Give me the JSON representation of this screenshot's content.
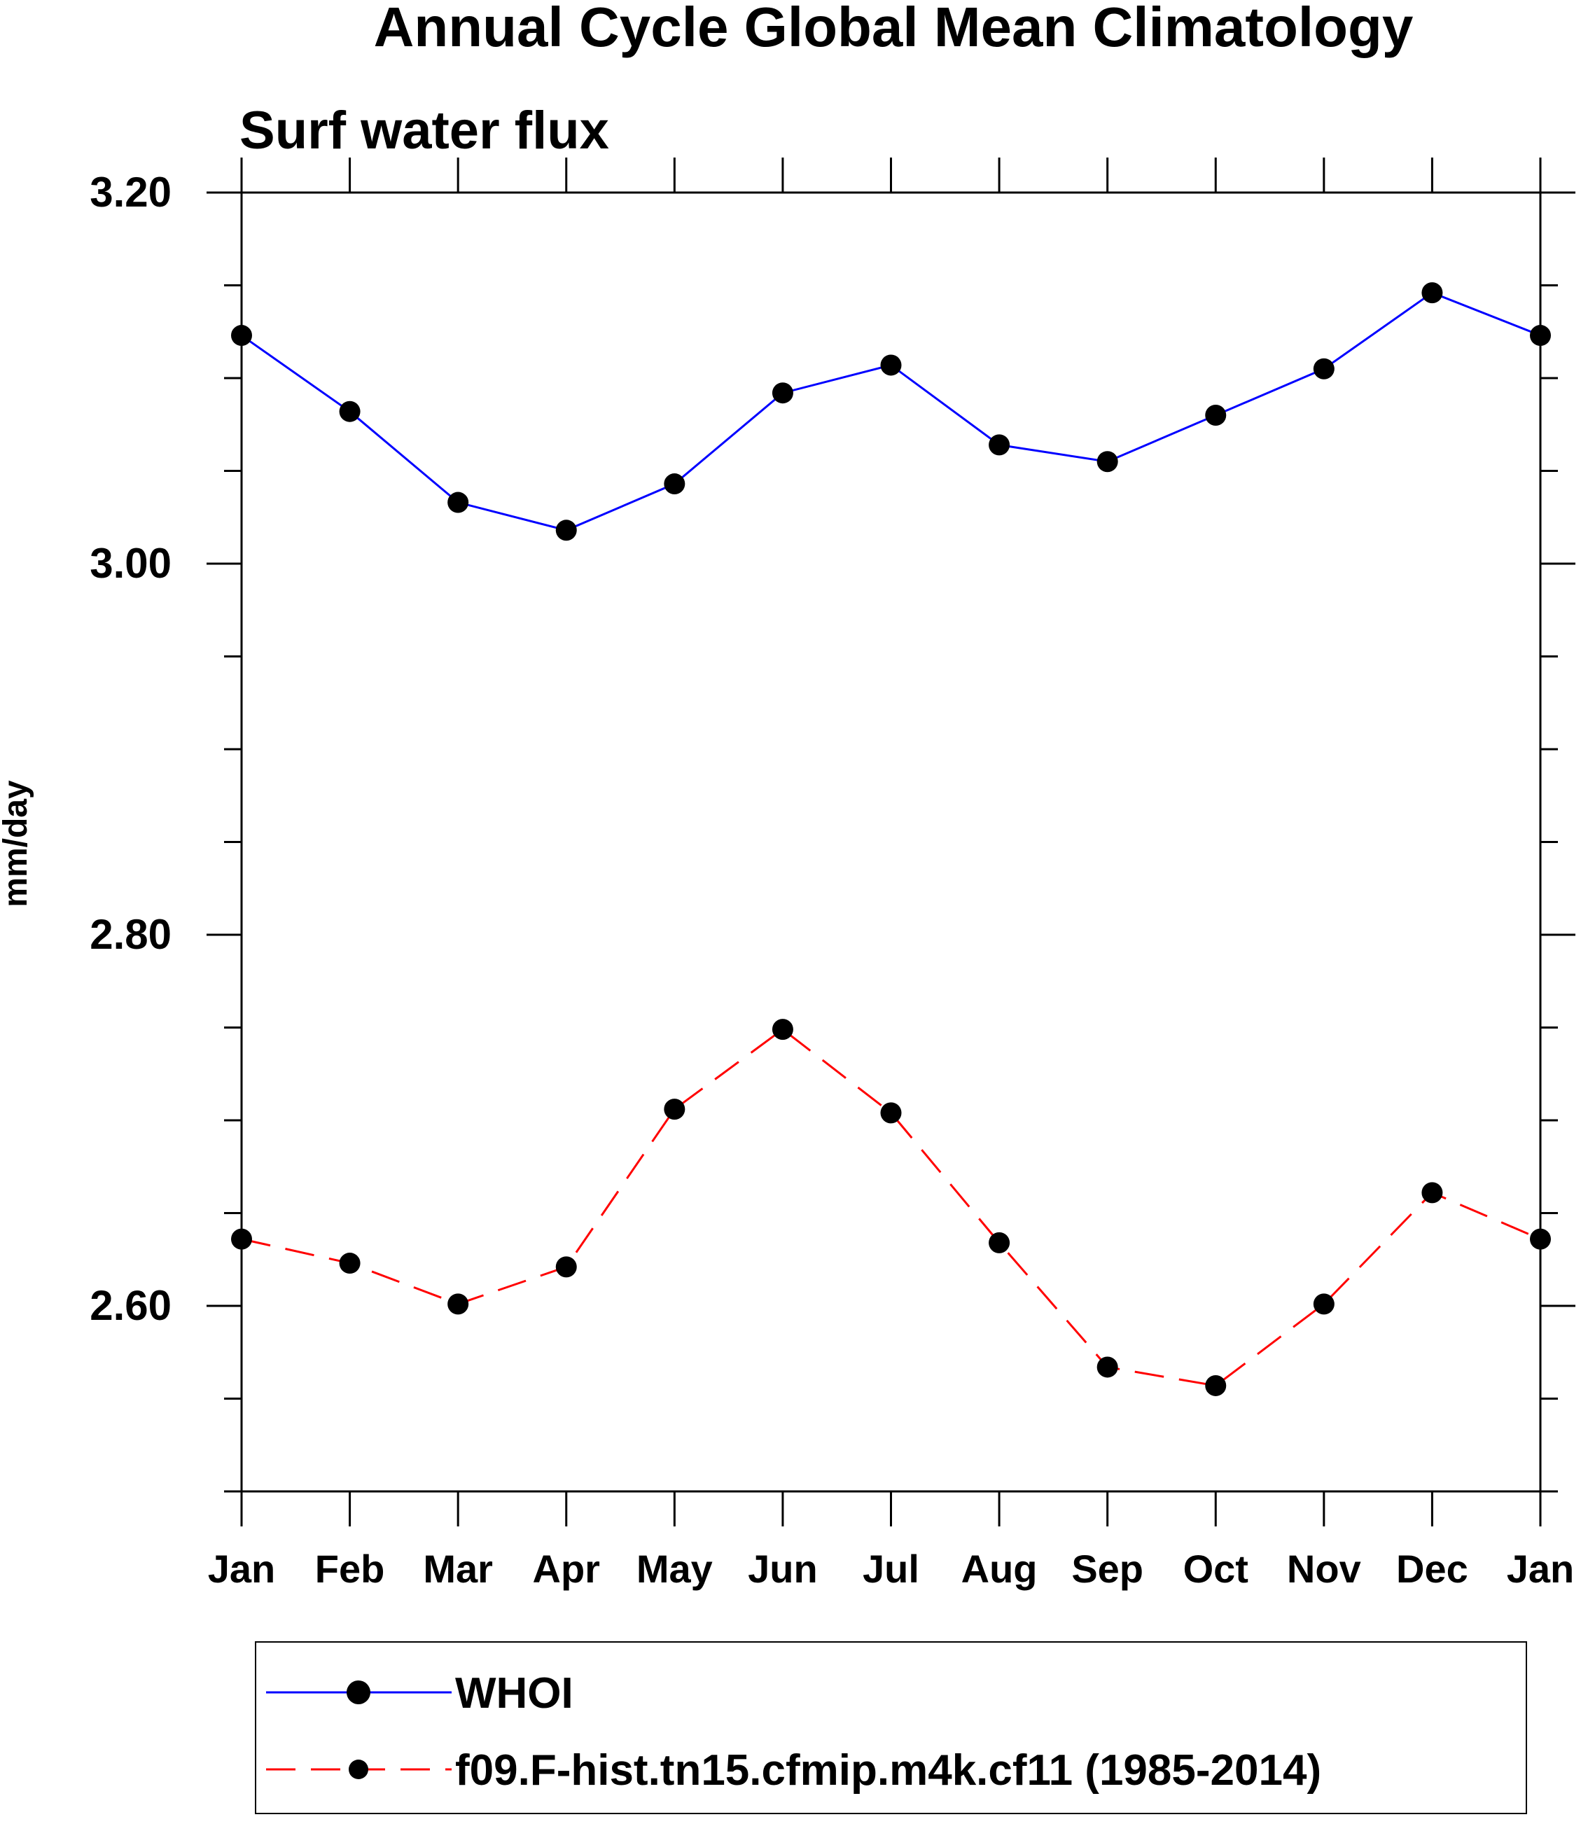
{
  "chart_data": {
    "type": "line",
    "title": "Annual Cycle Global Mean Climatology",
    "subtitle": "Surf water flux",
    "xlabel": "",
    "ylabel": "mm/day",
    "categories": [
      "Jan",
      "Feb",
      "Mar",
      "Apr",
      "May",
      "Jun",
      "Jul",
      "Aug",
      "Sep",
      "Oct",
      "Nov",
      "Dec",
      "Jan"
    ],
    "ylim": [
      2.5,
      3.2
    ],
    "yticks": [
      2.6,
      2.8,
      3.0,
      3.2
    ],
    "ytick_labels": [
      "2.60",
      "2.80",
      "3.00",
      "3.20"
    ],
    "y_minor_step": 0.05,
    "grid": false,
    "legend_position": "bottom",
    "series": [
      {
        "name": "WHOI",
        "color": "#0000ff",
        "dash": "solid",
        "marker": "filled-circle",
        "values": [
          3.123,
          3.082,
          3.033,
          3.018,
          3.043,
          3.092,
          3.107,
          3.064,
          3.055,
          3.08,
          3.105,
          3.146,
          3.123
        ]
      },
      {
        "name": "f09.F-hist.tn15.cfmip.m4k.cf11 (1985-2014)",
        "color": "#ff0000",
        "dash": "dashed",
        "marker": "filled-circle",
        "values": [
          2.636,
          2.623,
          2.601,
          2.621,
          2.706,
          2.749,
          2.704,
          2.634,
          2.567,
          2.557,
          2.601,
          2.661,
          2.636
        ]
      }
    ]
  }
}
